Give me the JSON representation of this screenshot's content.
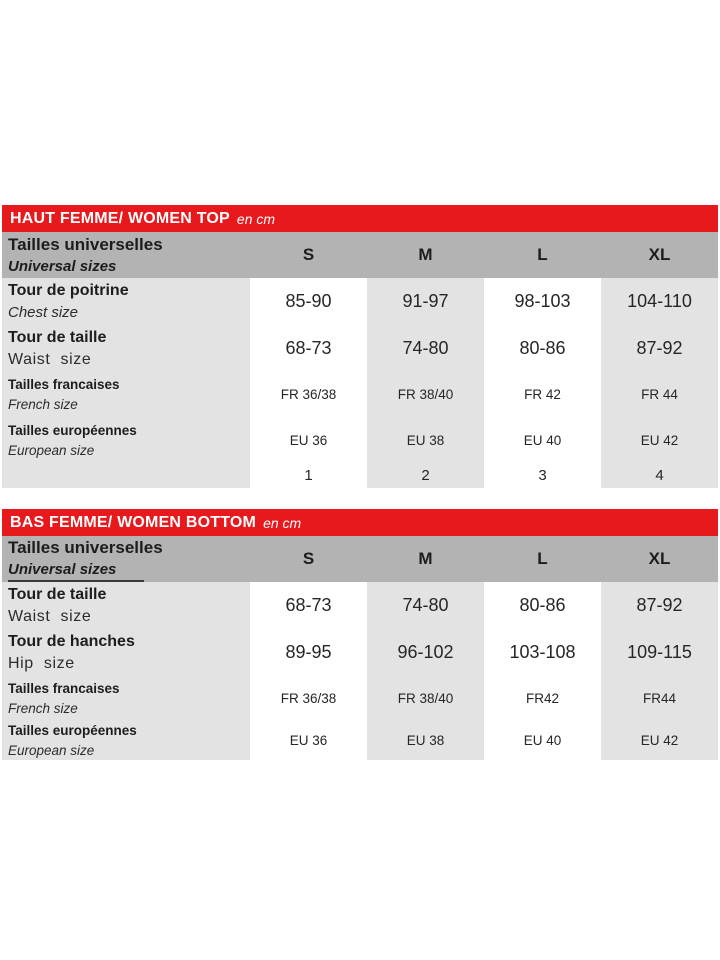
{
  "colors": {
    "accent_red": "#e8191d",
    "header_gray": "#b3b3b3",
    "body_gray": "#e3e3e3",
    "cell_white": "#ffffff",
    "text_dark": "#1d1d1d"
  },
  "top_table": {
    "title": "HAUT FEMME/ WOMEN TOP",
    "unit": "en cm",
    "header": {
      "label_fr": "Tailles universelles",
      "label_en": "Universal sizes",
      "sizes": {
        "s": "S",
        "m": "M",
        "l": "L",
        "xl": "XL"
      }
    },
    "rows": {
      "chest": {
        "fr": "Tour de poitrine",
        "en": "Chest size",
        "s": "85-90",
        "m": "91-97",
        "l": "98-103",
        "xl": "104-110"
      },
      "waist": {
        "fr": "Tour de taille",
        "en": "Waist  size",
        "s": "68-73",
        "m": "74-80",
        "l": "80-86",
        "xl": "87-92"
      },
      "french": {
        "fr": "Tailles francaises",
        "en": "French  size",
        "s": "FR 36/38",
        "m": "FR 38/40",
        "l": "FR 42",
        "xl": "FR 44"
      },
      "european": {
        "fr": "Tailles européennes",
        "en": "European size",
        "s": "EU 36",
        "m": "EU 38",
        "l": "EU 40",
        "xl": "EU 42"
      },
      "index": {
        "s": "1",
        "m": "2",
        "l": "3",
        "xl": "4"
      }
    }
  },
  "bottom_table": {
    "title": "BAS FEMME/ WOMEN BOTTOM",
    "unit": "en cm",
    "header": {
      "label_fr": "Tailles universelles",
      "label_en": "Universal sizes",
      "sizes": {
        "s": "S",
        "m": "M",
        "l": "L",
        "xl": "XL"
      }
    },
    "rows": {
      "waist": {
        "fr": "Tour de taille",
        "en": "Waist  size",
        "s": "68-73",
        "m": "74-80",
        "l": "80-86",
        "xl": "87-92"
      },
      "hip": {
        "fr": "Tour de hanches",
        "en": "Hip  size",
        "s": "89-95",
        "m": "96-102",
        "l": "103-108",
        "xl": "109-115"
      },
      "french": {
        "fr": "Tailles francaises",
        "en": "French  size",
        "s": "FR 36/38",
        "m": "FR 38/40",
        "l": "FR42",
        "xl": "FR44"
      },
      "european": {
        "fr": "Tailles européennes",
        "en": "European size",
        "s": "EU 36",
        "m": "EU 38",
        "l": "EU 40",
        "xl": "EU 42"
      }
    }
  }
}
